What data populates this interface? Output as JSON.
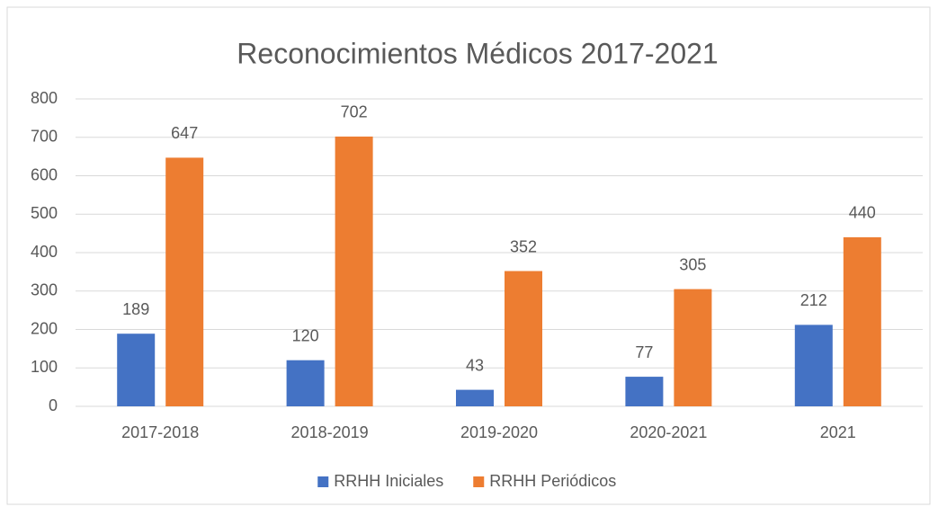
{
  "chart_data": {
    "type": "bar",
    "title": "Reconocimientos Médicos 2017-2021",
    "categories": [
      "2017-2018",
      "2018-2019",
      "2019-2020",
      "2020-2021",
      "2021"
    ],
    "series": [
      {
        "name": "RRHH Iniciales",
        "color": "#4472c4",
        "values": [
          189,
          120,
          43,
          77,
          212
        ]
      },
      {
        "name": "RRHH Periódicos",
        "color": "#ed7d31",
        "values": [
          647,
          702,
          352,
          305,
          440
        ]
      }
    ],
    "ylim": [
      0,
      800
    ],
    "yticks": [
      0,
      100,
      200,
      300,
      400,
      500,
      600,
      700,
      800
    ],
    "grid": true,
    "legend": "bottom"
  }
}
